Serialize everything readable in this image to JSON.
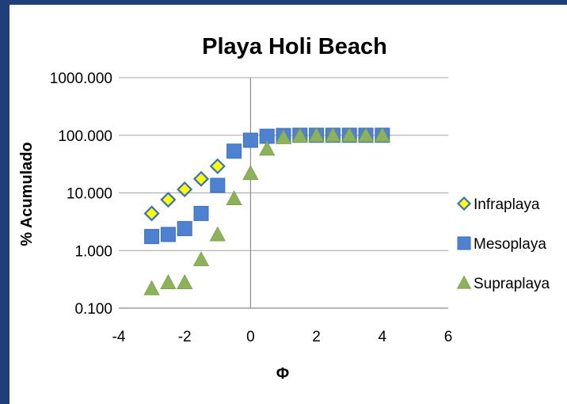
{
  "chart_data": {
    "type": "scatter",
    "title": "Playa Holi Beach",
    "xlabel": "Φ",
    "ylabel": "% Acumulado",
    "xlim": [
      -4,
      6
    ],
    "ylim": [
      0.1,
      1000
    ],
    "yscale": "log",
    "x_ticks": [
      "-4",
      "-2",
      "0",
      "2",
      "4",
      "6"
    ],
    "x_tick_values": [
      -4,
      -2,
      0,
      2,
      4,
      6
    ],
    "y_ticks": [
      "0.100",
      "1.000",
      "10.000",
      "100.000",
      "1000.000"
    ],
    "y_tick_values": [
      0.1,
      1,
      10,
      100,
      1000
    ],
    "grid": "horizontal major gridlines",
    "legend_position": "right",
    "series": [
      {
        "name": "Infraplaya",
        "marker": "diamond",
        "color": "#ffff00",
        "edge_color": "#3a6fc4",
        "points": [
          [
            -3,
            4.4
          ],
          [
            -2.5,
            7.6
          ],
          [
            -2,
            11.5
          ],
          [
            -1.5,
            17.5
          ],
          [
            -1,
            29
          ]
        ]
      },
      {
        "name": "Mesoplaya",
        "marker": "square",
        "color": "#4f81d1",
        "points": [
          [
            -3,
            1.75
          ],
          [
            -2.5,
            1.9
          ],
          [
            -2,
            2.4
          ],
          [
            -1.5,
            4.4
          ],
          [
            -1,
            13.5
          ],
          [
            -0.5,
            53
          ],
          [
            0,
            82
          ],
          [
            0.5,
            96
          ],
          [
            1,
            99
          ],
          [
            1.5,
            100
          ],
          [
            2,
            100
          ],
          [
            2.5,
            100
          ],
          [
            3,
            100
          ],
          [
            3.5,
            100
          ],
          [
            4,
            100
          ]
        ]
      },
      {
        "name": "Supraplaya",
        "marker": "triangle",
        "color": "#8db35a",
        "points": [
          [
            -3,
            0.22
          ],
          [
            -2.5,
            0.28
          ],
          [
            -2,
            0.28
          ],
          [
            -1.5,
            0.7
          ],
          [
            -1,
            1.9
          ],
          [
            -0.5,
            8
          ],
          [
            0,
            22
          ],
          [
            0.5,
            58
          ],
          [
            1,
            92
          ],
          [
            1.5,
            98
          ],
          [
            2,
            100
          ],
          [
            2.5,
            100
          ],
          [
            3,
            100
          ],
          [
            3.5,
            100
          ],
          [
            4,
            100
          ]
        ]
      }
    ]
  }
}
